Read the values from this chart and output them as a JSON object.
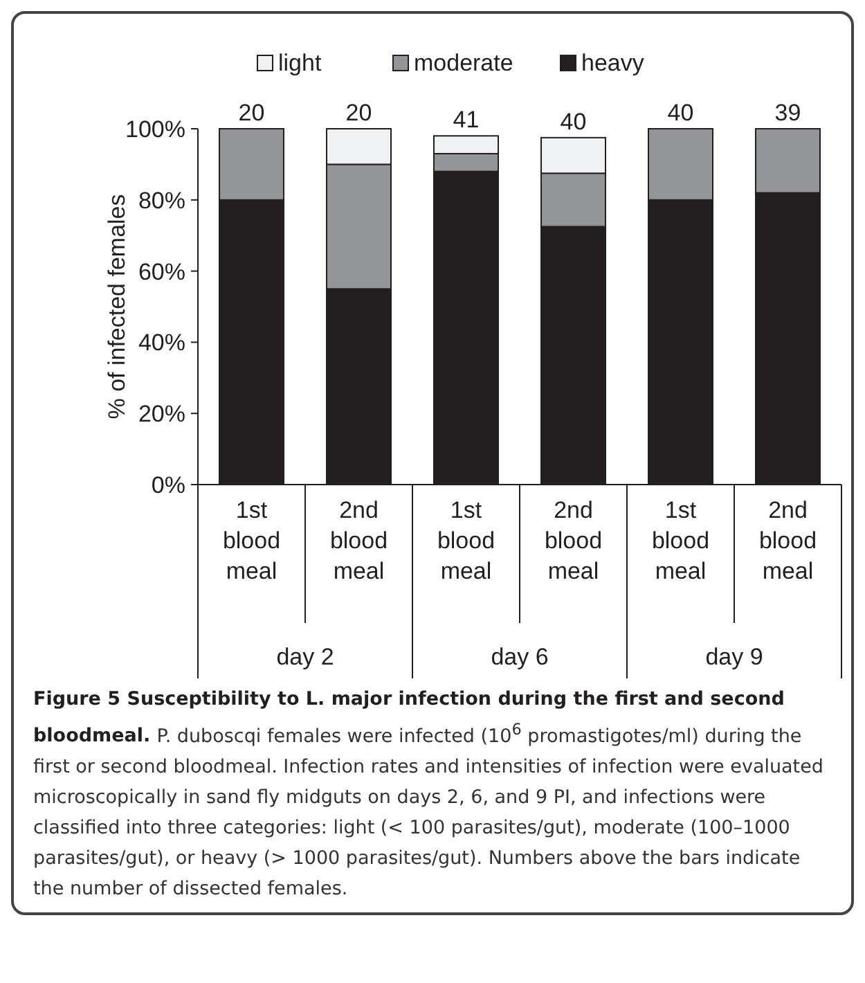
{
  "chart_data": {
    "type": "bar",
    "stacked": true,
    "title": "Figure 5 Susceptibility to L. major infection during the first and second bloodmeal.",
    "ylabel": "% of  infected females",
    "categories": [
      "1st blood meal",
      "2nd blood meal",
      "1st blood meal",
      "2nd blood meal",
      "1st blood meal",
      "2nd blood meal"
    ],
    "series": [
      {
        "name": "heavy",
        "color": "#231f20",
        "values": [
          80,
          55,
          88,
          72.5,
          80,
          82
        ]
      },
      {
        "name": "moderate",
        "color": "#939598",
        "values": [
          20,
          35,
          5,
          15,
          20,
          18
        ]
      },
      {
        "name": "light",
        "color": "#f0f1f3",
        "values": [
          0,
          10,
          5,
          10,
          0,
          0
        ]
      }
    ],
    "ylim": [
      0,
      100
    ],
    "yticks": [
      {
        "value": 0,
        "label": "0%"
      },
      {
        "value": 20,
        "label": "20%"
      },
      {
        "value": 40,
        "label": "40%"
      },
      {
        "value": 60,
        "label": "60%"
      },
      {
        "value": 80,
        "label": "80%"
      },
      {
        "value": 100,
        "label": "100%"
      }
    ],
    "legend": "top",
    "grid": false,
    "annotations": [
      "20",
      "20",
      "41",
      "40",
      "40",
      "39",
      "day 2",
      "day 6",
      "day 9",
      "P. duboscqi females were infected (10$^{6}$ promastigotes/ml) during the first or second bloodmeal. Infection rates and intensities of infection were evaluated microscopically in sand fly midguts on days 2, 6, and 9 PI, and infections were classified into three categories: light (< 100 parasites/gut), moderate (100–1000 parasites/gut), or heavy (> 1000 parasites/gut). Numbers above the bars indicate the number of dissected females."
    ]
  }
}
